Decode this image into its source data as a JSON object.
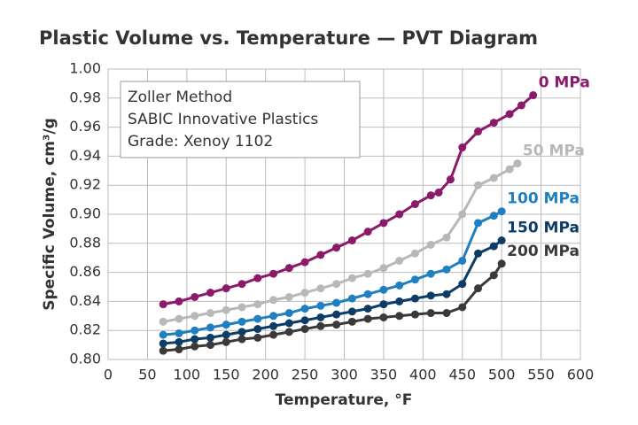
{
  "chart_data": {
    "type": "line",
    "title": "Plastic Volume vs. Temperature — PVT Diagram",
    "xlabel": "Temperature, °F",
    "ylabel": "Specific Volume, cm³/g",
    "annotation": [
      "Zoller Method",
      "SABIC Innovative Plastics",
      "Grade: Xenoy 1102"
    ],
    "xlim": [
      0,
      600
    ],
    "xticks": [
      0,
      50,
      100,
      150,
      200,
      250,
      300,
      350,
      400,
      450,
      500,
      550,
      600
    ],
    "ylim": [
      0.8,
      1.0
    ],
    "yticks": [
      {
        "value": 0.8,
        "label": "0.80"
      },
      {
        "value": 0.82,
        "label": "0.82"
      },
      {
        "value": 0.84,
        "label": "0.84"
      },
      {
        "value": 0.86,
        "label": "0.86"
      },
      {
        "value": 0.88,
        "label": "0.88"
      },
      {
        "value": 0.9,
        "label": "0.90"
      },
      {
        "value": 0.92,
        "label": "0.92"
      },
      {
        "value": 0.94,
        "label": "0.94"
      },
      {
        "value": 0.96,
        "label": "0.96"
      },
      {
        "value": 0.98,
        "label": "0.98"
      },
      {
        "value": 1.0,
        "label": "1.00"
      }
    ],
    "grid": true,
    "series": [
      {
        "name": "0 MPa",
        "color": "#8b1a6b",
        "x": [
          70,
          90,
          110,
          130,
          150,
          170,
          190,
          210,
          230,
          250,
          270,
          290,
          310,
          330,
          350,
          370,
          390,
          410,
          420,
          435,
          450,
          470,
          490,
          510,
          525,
          540
        ],
        "values": [
          0.838,
          0.84,
          0.843,
          0.846,
          0.849,
          0.852,
          0.856,
          0.859,
          0.863,
          0.867,
          0.872,
          0.877,
          0.882,
          0.888,
          0.894,
          0.9,
          0.907,
          0.913,
          0.915,
          0.924,
          0.946,
          0.957,
          0.963,
          0.969,
          0.975,
          0.982
        ]
      },
      {
        "name": "50 MPa",
        "color": "#b8b8b8",
        "x": [
          70,
          90,
          110,
          130,
          150,
          170,
          190,
          210,
          230,
          250,
          270,
          290,
          310,
          330,
          350,
          370,
          390,
          410,
          430,
          450,
          470,
          490,
          510,
          520
        ],
        "values": [
          0.826,
          0.828,
          0.83,
          0.832,
          0.834,
          0.836,
          0.838,
          0.841,
          0.843,
          0.846,
          0.849,
          0.852,
          0.856,
          0.859,
          0.863,
          0.868,
          0.873,
          0.879,
          0.884,
          0.9,
          0.92,
          0.925,
          0.931,
          0.935
        ]
      },
      {
        "name": "100 MPa",
        "color": "#1f7fc0",
        "x": [
          70,
          90,
          110,
          130,
          150,
          170,
          190,
          210,
          230,
          250,
          270,
          290,
          310,
          330,
          350,
          370,
          390,
          410,
          430,
          450,
          470,
          490,
          500
        ],
        "values": [
          0.817,
          0.818,
          0.82,
          0.822,
          0.824,
          0.826,
          0.828,
          0.83,
          0.832,
          0.835,
          0.837,
          0.839,
          0.842,
          0.845,
          0.848,
          0.851,
          0.855,
          0.859,
          0.862,
          0.868,
          0.894,
          0.899,
          0.902
        ]
      },
      {
        "name": "150 MPa",
        "color": "#0d3d66",
        "x": [
          70,
          90,
          110,
          130,
          150,
          170,
          190,
          210,
          230,
          250,
          270,
          290,
          310,
          330,
          350,
          370,
          390,
          410,
          430,
          450,
          470,
          490,
          500
        ],
        "values": [
          0.811,
          0.812,
          0.814,
          0.815,
          0.817,
          0.819,
          0.821,
          0.823,
          0.825,
          0.827,
          0.829,
          0.831,
          0.833,
          0.835,
          0.838,
          0.84,
          0.842,
          0.844,
          0.845,
          0.852,
          0.873,
          0.878,
          0.882
        ]
      },
      {
        "name": "200 MPa",
        "color": "#3a3a3a",
        "x": [
          70,
          90,
          110,
          130,
          150,
          170,
          190,
          210,
          230,
          250,
          270,
          290,
          310,
          330,
          350,
          370,
          390,
          410,
          430,
          450,
          470,
          490,
          500
        ],
        "values": [
          0.806,
          0.807,
          0.809,
          0.81,
          0.812,
          0.814,
          0.815,
          0.817,
          0.819,
          0.821,
          0.823,
          0.824,
          0.826,
          0.828,
          0.829,
          0.83,
          0.831,
          0.832,
          0.832,
          0.836,
          0.849,
          0.858,
          0.866
        ]
      }
    ]
  }
}
